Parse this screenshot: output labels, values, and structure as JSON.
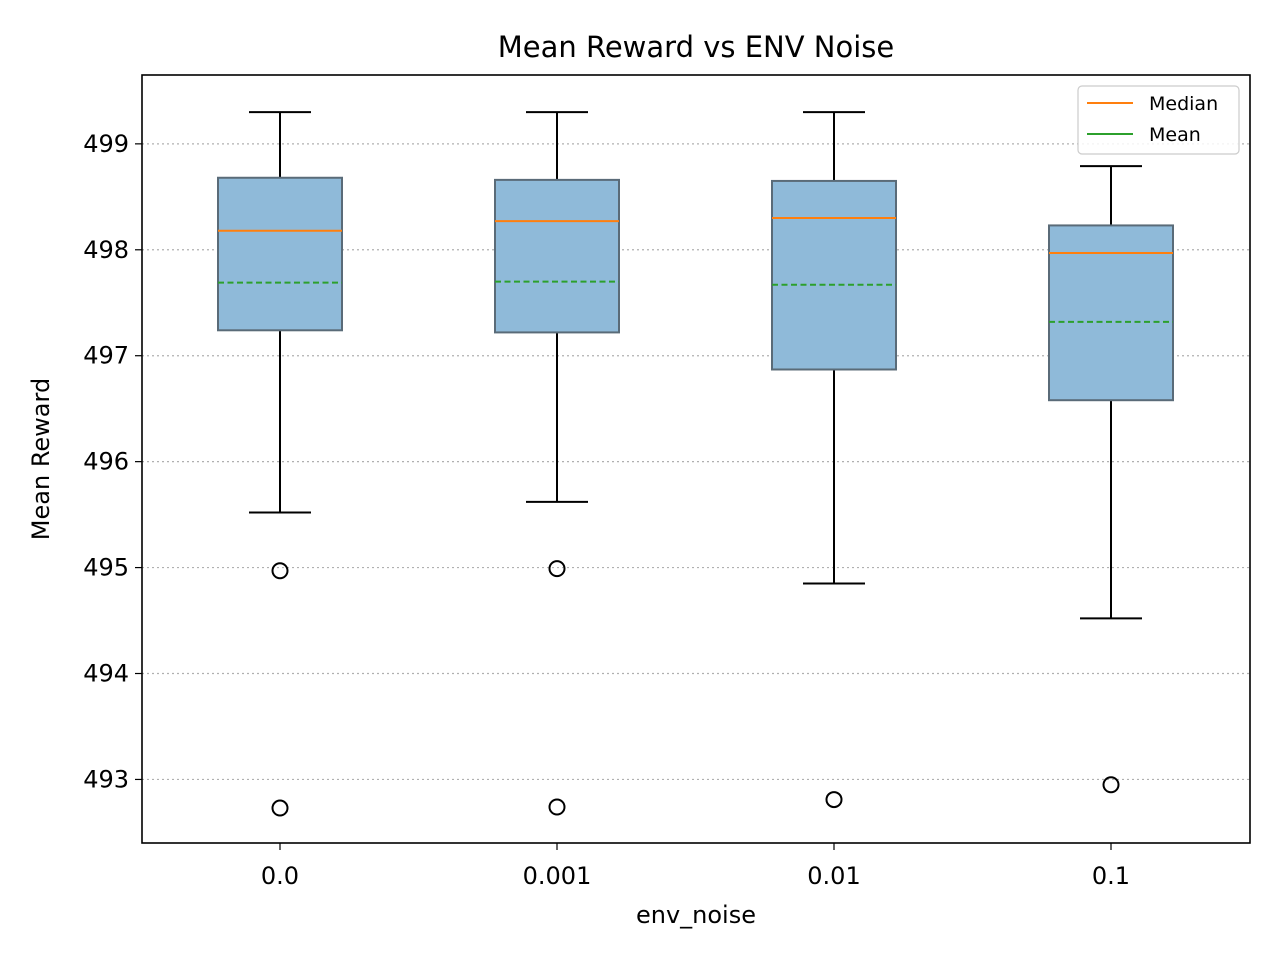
{
  "chart_data": {
    "type": "box",
    "title": "Mean Reward vs ENV Noise",
    "xlabel": "env_noise",
    "ylabel": "Mean Reward",
    "categories": [
      "0.0",
      "0.001",
      "0.01",
      "0.1"
    ],
    "ylim": [
      492.4,
      499.65
    ],
    "yticks": [
      493,
      494,
      495,
      496,
      497,
      498,
      499
    ],
    "grid": "y-dotted",
    "legend_position": "top-right",
    "legend": [
      "Median",
      "Mean"
    ],
    "boxes": [
      {
        "category": "0.0",
        "whisker_low": 495.52,
        "q1": 497.24,
        "median": 498.18,
        "mean": 497.69,
        "q3": 498.68,
        "whisker_high": 499.3,
        "outliers": [
          494.97,
          492.73
        ]
      },
      {
        "category": "0.001",
        "whisker_low": 495.62,
        "q1": 497.22,
        "median": 498.27,
        "mean": 497.7,
        "q3": 498.66,
        "whisker_high": 499.3,
        "outliers": [
          494.99,
          492.74
        ]
      },
      {
        "category": "0.01",
        "whisker_low": 494.85,
        "q1": 496.87,
        "median": 498.3,
        "mean": 497.67,
        "q3": 498.65,
        "whisker_high": 499.3,
        "outliers": [
          492.81
        ]
      },
      {
        "category": "0.1",
        "whisker_low": 494.52,
        "q1": 496.58,
        "median": 497.97,
        "mean": 497.32,
        "q3": 498.23,
        "whisker_high": 498.79,
        "outliers": [
          492.95
        ]
      }
    ],
    "colors": {
      "box_fill": "#8fbad9",
      "box_edge": "#5a6b78",
      "median": "#ff7f0e",
      "mean": "#2ca02c",
      "grid": "#b0b0b0"
    }
  }
}
